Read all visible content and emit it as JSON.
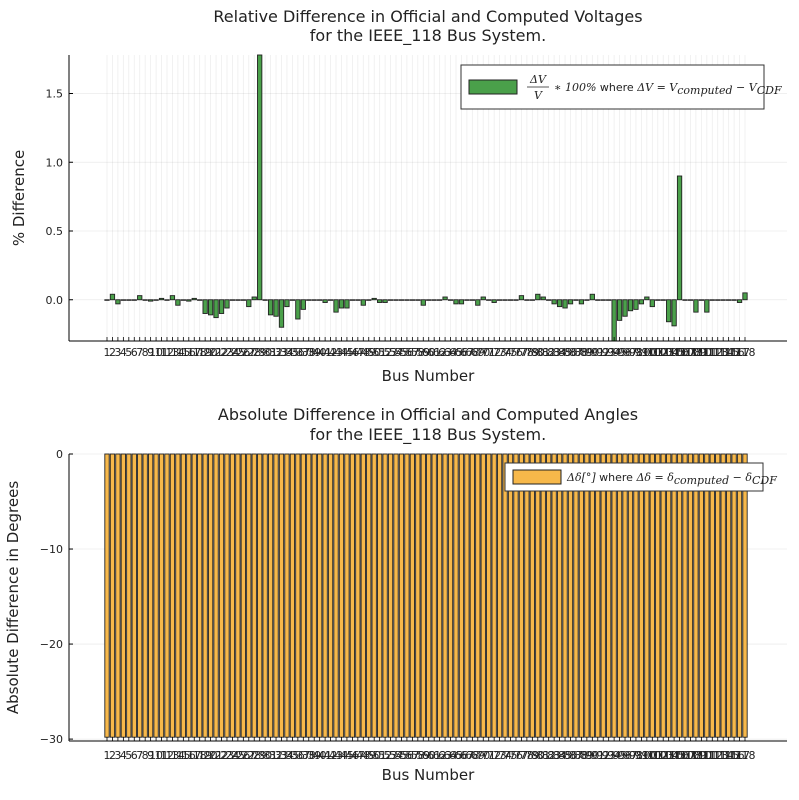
{
  "chart_data": [
    {
      "type": "bar",
      "title": [
        "Relative Difference in Official and Computed Voltages",
        "for the IEEE_118 Bus System."
      ],
      "xlabel": "Bus Number",
      "ylabel": "% Difference",
      "ylim": [
        -0.3,
        1.78
      ],
      "yticks": [
        0.0,
        0.5,
        1.0,
        1.5
      ],
      "ytick_labels": [
        "0.0",
        "0.5",
        "1.0",
        "1.5"
      ],
      "grid": true,
      "legend_position": "top-right",
      "color": "#4aa04a",
      "legend": {
        "math_frac_num": "ΔV",
        "math_frac_den": "V",
        "math_mult": "∗ 100%",
        "plain": " where ",
        "math_tail": "ΔV = V",
        "sub1": "computed",
        "minus": " − V",
        "sub2": "CDF"
      },
      "categories": [
        "1",
        "2",
        "3",
        "4",
        "5",
        "6",
        "7",
        "8",
        "9",
        "10",
        "11",
        "12",
        "13",
        "14",
        "15",
        "16",
        "17",
        "18",
        "19",
        "20",
        "21",
        "22",
        "23",
        "24",
        "25",
        "26",
        "27",
        "28",
        "29",
        "30",
        "31",
        "32",
        "33",
        "34",
        "35",
        "36",
        "37",
        "38",
        "39",
        "40",
        "41",
        "42",
        "43",
        "44",
        "45",
        "46",
        "47",
        "48",
        "49",
        "50",
        "51",
        "52",
        "53",
        "54",
        "55",
        "56",
        "57",
        "58",
        "59",
        "60",
        "61",
        "62",
        "63",
        "64",
        "65",
        "66",
        "67",
        "68",
        "69",
        "70",
        "71",
        "72",
        "73",
        "74",
        "75",
        "76",
        "77",
        "78",
        "79",
        "80",
        "81",
        "82",
        "83",
        "84",
        "85",
        "86",
        "87",
        "88",
        "89",
        "90",
        "91",
        "92",
        "93",
        "94",
        "95",
        "96",
        "97",
        "98",
        "99",
        "100",
        "101",
        "102",
        "103",
        "104",
        "105",
        "106",
        "107",
        "108",
        "109",
        "110",
        "111",
        "112",
        "113",
        "114",
        "115",
        "116",
        "117",
        "118"
      ],
      "values": [
        0.0,
        0.04,
        -0.03,
        0.0,
        0.0,
        0.0,
        0.03,
        0.0,
        -0.01,
        0.0,
        0.01,
        0.0,
        0.03,
        -0.04,
        0.0,
        -0.01,
        0.01,
        0.0,
        -0.1,
        -0.11,
        -0.13,
        -0.1,
        -0.06,
        0.0,
        0.0,
        0.0,
        -0.05,
        0.02,
        1.78,
        0.0,
        -0.11,
        -0.12,
        -0.2,
        -0.05,
        0.0,
        -0.14,
        -0.07,
        0.0,
        0.0,
        0.0,
        -0.02,
        0.0,
        -0.09,
        -0.06,
        -0.06,
        0.0,
        0.0,
        -0.04,
        0.0,
        0.01,
        -0.02,
        -0.02,
        0.0,
        0.0,
        0.0,
        0.0,
        0.0,
        0.0,
        -0.04,
        0.0,
        0.0,
        0.0,
        0.02,
        0.0,
        -0.03,
        -0.03,
        0.0,
        0.0,
        -0.04,
        0.02,
        0.0,
        -0.02,
        0.0,
        0.0,
        0.0,
        0.0,
        0.03,
        0.0,
        0.0,
        0.04,
        0.02,
        0.0,
        -0.03,
        -0.05,
        -0.06,
        -0.03,
        0.0,
        -0.03,
        0.0,
        0.04,
        0.0,
        0.0,
        0.0,
        -0.3,
        -0.15,
        -0.12,
        -0.08,
        -0.07,
        -0.03,
        0.02,
        -0.05,
        0.0,
        0.0,
        -0.16,
        -0.19,
        0.9,
        0.0,
        0.0,
        -0.09,
        0.0,
        -0.09,
        0.0,
        0.0,
        0.0,
        0.0,
        0.0,
        -0.02,
        0.05
      ]
    },
    {
      "type": "bar",
      "title": [
        "Absolute Difference in Official and Computed Angles",
        "for the IEEE_118 Bus System."
      ],
      "xlabel": "Bus Number",
      "ylabel": "Absolute Difference in Degrees",
      "ylim": [
        -30.2,
        0
      ],
      "yticks": [
        0,
        -10,
        -20,
        -30
      ],
      "ytick_labels": [
        "0",
        "−10",
        "−20",
        "−30"
      ],
      "grid": true,
      "legend_position": "top-right",
      "color": "#f7b84a",
      "legend": {
        "math_head": "Δδ[°]",
        "plain": " where ",
        "math_tail": "Δδ = δ",
        "sub1": "computed",
        "minus": " − δ",
        "sub2": "CDF"
      },
      "categories": [
        "1",
        "2",
        "3",
        "4",
        "5",
        "6",
        "7",
        "8",
        "9",
        "10",
        "11",
        "12",
        "13",
        "14",
        "15",
        "16",
        "17",
        "18",
        "19",
        "20",
        "21",
        "22",
        "23",
        "24",
        "25",
        "26",
        "27",
        "28",
        "29",
        "30",
        "31",
        "32",
        "33",
        "34",
        "35",
        "36",
        "37",
        "38",
        "39",
        "40",
        "41",
        "42",
        "43",
        "44",
        "45",
        "46",
        "47",
        "48",
        "49",
        "50",
        "51",
        "52",
        "53",
        "54",
        "55",
        "56",
        "57",
        "58",
        "59",
        "60",
        "61",
        "62",
        "63",
        "64",
        "65",
        "66",
        "67",
        "68",
        "69",
        "70",
        "71",
        "72",
        "73",
        "74",
        "75",
        "76",
        "77",
        "78",
        "79",
        "80",
        "81",
        "82",
        "83",
        "84",
        "85",
        "86",
        "87",
        "88",
        "89",
        "90",
        "91",
        "92",
        "93",
        "94",
        "95",
        "96",
        "97",
        "98",
        "99",
        "100",
        "101",
        "102",
        "103",
        "104",
        "105",
        "106",
        "107",
        "108",
        "109",
        "110",
        "111",
        "112",
        "113",
        "114",
        "115",
        "116",
        "117",
        "118"
      ],
      "values": [
        -29.8,
        -29.8,
        -29.8,
        -29.8,
        -29.8,
        -29.8,
        -29.8,
        -29.8,
        -29.8,
        -29.8,
        -29.8,
        -29.8,
        -29.8,
        -29.8,
        -29.8,
        -29.8,
        -29.8,
        -29.8,
        -29.8,
        -29.8,
        -29.8,
        -29.8,
        -29.8,
        -29.8,
        -29.8,
        -29.8,
        -29.8,
        -29.8,
        -29.8,
        -29.8,
        -29.8,
        -29.8,
        -29.8,
        -29.8,
        -29.8,
        -29.8,
        -29.8,
        -29.8,
        -29.8,
        -29.8,
        -29.8,
        -29.8,
        -29.8,
        -29.8,
        -29.8,
        -29.8,
        -29.8,
        -29.8,
        -29.8,
        -29.8,
        -29.8,
        -29.8,
        -29.8,
        -29.8,
        -29.8,
        -29.8,
        -29.8,
        -29.8,
        -29.8,
        -29.8,
        -29.8,
        -29.8,
        -29.8,
        -29.8,
        -29.8,
        -29.8,
        -29.8,
        -29.8,
        -29.8,
        -29.8,
        -29.8,
        -29.8,
        -29.8,
        -29.8,
        -29.8,
        -29.8,
        -29.8,
        -29.8,
        -29.8,
        -29.8,
        -29.8,
        -29.8,
        -29.8,
        -29.8,
        -29.8,
        -29.8,
        -29.8,
        -29.8,
        -29.8,
        -29.8,
        -29.8,
        -29.8,
        -29.8,
        -29.8,
        -29.8,
        -29.8,
        -29.8,
        -29.8,
        -29.8,
        -29.8,
        -29.8,
        -29.8,
        -29.8,
        -29.8,
        -29.8,
        -29.8,
        -29.8,
        -29.8,
        -29.8,
        -29.8,
        -29.8,
        -29.8,
        -29.8,
        -29.8,
        -29.8,
        -29.8,
        -29.8,
        -29.8
      ]
    }
  ]
}
